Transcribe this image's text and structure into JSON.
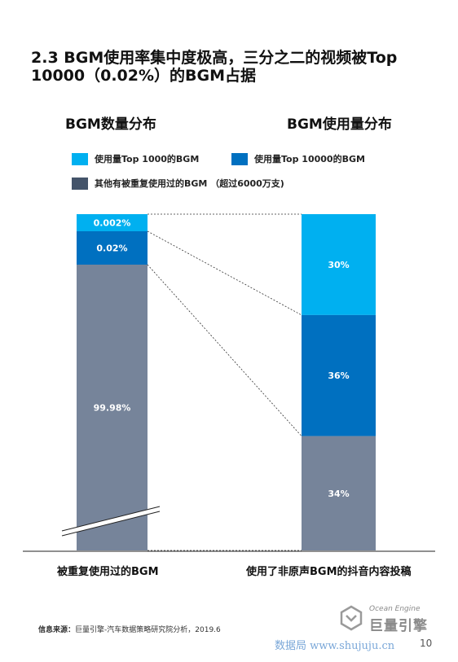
{
  "title": "2.3 BGM使用率集中度极高，三分之二的视频被Top 10000（0.02%）的BGM占据",
  "subtitles": {
    "left": "BGM数量分布",
    "right": "BGM使用量分布"
  },
  "legend": [
    {
      "label": "使用量Top 1000的BGM",
      "color": "#00b0f0"
    },
    {
      "label": "使用量Top 10000的BGM",
      "color": "#0070c0"
    },
    {
      "label": "其他有被重复使用过的BGM （超过6000万支)",
      "color": "#44546a"
    }
  ],
  "chart_data": {
    "type": "bar",
    "categories": [
      "被重复使用过的BGM",
      "使用了非原声BGM的抖音内容投稿"
    ],
    "series": [
      {
        "name": "使用量Top 1000的BGM",
        "values": [
          0.002,
          30
        ],
        "labels": [
          "0.002%",
          "30%"
        ],
        "color": "#00b0f0"
      },
      {
        "name": "使用量Top 10000的BGM",
        "values": [
          0.02,
          36
        ],
        "labels": [
          "0.02%",
          "36%"
        ],
        "color": "#0070c0"
      },
      {
        "name": "其他有被重复使用过的BGM （超过6000万支)",
        "values": [
          99.98,
          34
        ],
        "labels": [
          "99.98%",
          "34%"
        ],
        "color": "#76849a"
      }
    ],
    "stacked": true,
    "axis_break_on_first_bar": true
  },
  "source": {
    "prefix": "信息来源：",
    "text": "巨量引擎-汽车数据策略研究院分析，2019.6"
  },
  "logo": {
    "en": "Ocean Engine",
    "cn": "巨量引擎"
  },
  "watermark": "数据局 www.shujuju.cn",
  "page_number": "10"
}
